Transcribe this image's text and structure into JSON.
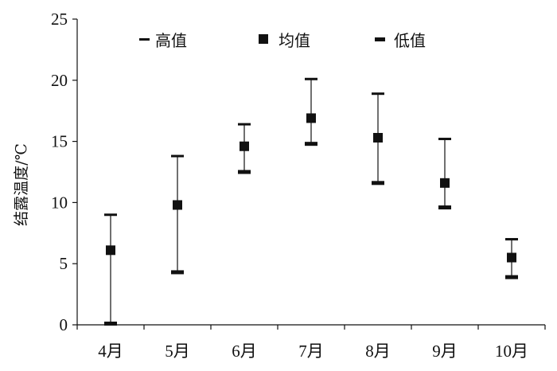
{
  "chart_data": {
    "type": "error-bar",
    "categories": [
      "4月",
      "5月",
      "6月",
      "7月",
      "8月",
      "9月",
      "10月"
    ],
    "series": [
      {
        "name": "高值",
        "values": [
          9.0,
          13.8,
          16.4,
          20.1,
          18.9,
          15.2,
          7.0
        ]
      },
      {
        "name": "均值",
        "values": [
          6.1,
          9.8,
          14.6,
          16.9,
          15.3,
          11.6,
          5.5
        ]
      },
      {
        "name": "低值",
        "values": [
          0.1,
          4.3,
          12.5,
          14.8,
          11.6,
          9.6,
          3.9
        ]
      }
    ],
    "ylabel": "结露温度/℃",
    "xlabel": "",
    "ylim": [
      0,
      25
    ],
    "yticks": [
      "0",
      "5",
      "10",
      "15",
      "20",
      "25"
    ],
    "legend": {
      "position": "top",
      "entries": [
        "高值",
        "均值",
        "低值"
      ]
    },
    "grid": false,
    "color": "#111111"
  }
}
